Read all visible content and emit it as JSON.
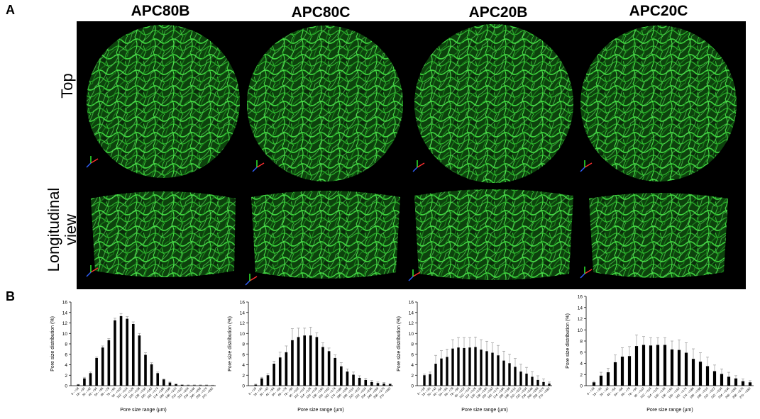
{
  "figure": {
    "panel_a": "A",
    "panel_b": "B",
    "columns": [
      "APC80B",
      "APC80C",
      "APC20B",
      "APC20C"
    ],
    "rows": {
      "top": "Top",
      "longitudinal_1": "Longitudinal",
      "longitudinal_2": "view"
    },
    "image_tint": "#2ecc2e",
    "image_background": "#000000"
  },
  "chart_data": [
    {
      "type": "bar",
      "xlabel": "Pore size range (µm)",
      "ylabel": "Pore size distribution (%)",
      "ylim": [
        0,
        16
      ],
      "yticks": [
        0,
        2,
        4,
        6,
        8,
        10,
        12,
        14,
        16
      ],
      "categories": [
        "6 - <18",
        "18 - <30",
        "30 - <42",
        "42 - <54",
        "54 - <66",
        "66 - <78",
        "78 - <90",
        "90 - <102",
        "102 - <114",
        "114 - <126",
        "126 - <138",
        "138 - <150",
        "150 - <162",
        "162 - <174",
        "174 - <186",
        "186 - <198",
        "198 - <210",
        "210 - <222",
        "222 - <234",
        "234 - <246",
        "246 - <258",
        "258 - <270",
        "270 - <282"
      ],
      "values": [
        0.2,
        1.4,
        2.4,
        5.3,
        7.3,
        8.7,
        12.5,
        13.3,
        12.8,
        11.8,
        9.6,
        5.9,
        4.1,
        2.4,
        1.2,
        0.6,
        0.3,
        0.15,
        0.1,
        0.1,
        0.1,
        0.1,
        0.05
      ],
      "errors": [
        0.05,
        0.2,
        0.2,
        0.2,
        0.3,
        0.3,
        0.4,
        0.5,
        0.4,
        0.4,
        0.4,
        0.4,
        0.3,
        0.2,
        0.1,
        0.1,
        0.05,
        0.05,
        0.05,
        0.05,
        0.05,
        0.05,
        0.05
      ]
    },
    {
      "type": "bar",
      "xlabel": "Pore size range (µm)",
      "ylabel": "Pore size distribution (%)",
      "ylim": [
        0,
        16
      ],
      "yticks": [
        0,
        2,
        4,
        6,
        8,
        10,
        12,
        14,
        16
      ],
      "categories": [
        "6 - <18",
        "18 - <30",
        "30 - <42",
        "42 - <54",
        "54 - <66",
        "66 - <78",
        "78 - <90",
        "90 - <102",
        "102 - <114",
        "114 - <126",
        "126 - <138",
        "138 - <150",
        "150 - <162",
        "162 - <174",
        "174 - <186",
        "186 - <198",
        "198 - <210",
        "210 - <222",
        "222 - <234",
        "234 - <246",
        "246 - <258",
        "258 - <270",
        "270 - <282"
      ],
      "values": [
        0.2,
        1.4,
        2.0,
        4.2,
        5.4,
        6.4,
        8.7,
        9.3,
        9.6,
        9.6,
        9.3,
        7.4,
        6.6,
        5.3,
        3.7,
        2.7,
        2.1,
        1.5,
        1.1,
        0.7,
        0.5,
        0.4,
        0.3
      ],
      "errors": [
        0.1,
        0.2,
        0.3,
        0.5,
        1.0,
        1.2,
        2.2,
        1.7,
        1.4,
        1.6,
        0.8,
        0.8,
        0.6,
        0.6,
        0.7,
        0.5,
        0.5,
        0.4,
        0.3,
        0.3,
        0.2,
        0.2,
        0.1
      ]
    },
    {
      "type": "bar",
      "xlabel": "Pore size range (µm)",
      "ylabel": "Pore size distribution (%)",
      "ylim": [
        0,
        16
      ],
      "yticks": [
        0,
        2,
        4,
        6,
        8,
        10,
        12,
        14,
        16
      ],
      "categories": [
        "6 - <18",
        "18 - <30",
        "30 - <42",
        "42 - <54",
        "54 - <66",
        "66 - <78",
        "78 - <90",
        "90 - <102",
        "102 - <114",
        "114 - <126",
        "126 - <138",
        "138 - <150",
        "150 - <162",
        "162 - <174",
        "174 - <186",
        "186 - <198",
        "198 - <210",
        "210 - <222",
        "222 - <234",
        "234 - <246",
        "246 - <258",
        "258 - <270",
        "270 - <282"
      ],
      "values": [
        2.0,
        2.2,
        4.2,
        5.2,
        5.5,
        7.1,
        7.3,
        7.2,
        7.3,
        7.4,
        6.9,
        6.6,
        6.3,
        5.8,
        4.8,
        4.3,
        3.6,
        2.7,
        2.3,
        1.7,
        1.1,
        0.7,
        0.4
      ],
      "errors": [
        0.2,
        0.4,
        1.6,
        1.5,
        1.5,
        1.7,
        1.9,
        2.0,
        1.9,
        1.9,
        1.9,
        1.9,
        1.9,
        1.9,
        1.8,
        1.7,
        1.6,
        1.4,
        1.2,
        1.0,
        0.8,
        0.6,
        0.3
      ]
    },
    {
      "type": "bar",
      "xlabel": "Pore size range (µm)",
      "ylabel": "Pore size distribution (%)",
      "ylim": [
        0,
        16
      ],
      "yticks": [
        0,
        2,
        4,
        6,
        8,
        10,
        12,
        14,
        16
      ],
      "categories": [
        "6 - <18",
        "18 - <30",
        "30 - <42",
        "42 - <54",
        "54 - <66",
        "66 - <78",
        "78 - <90",
        "90 - <102",
        "102 - <114",
        "114 - <126",
        "126 - <138",
        "138 - <150",
        "150 - <162",
        "162 - <174",
        "174 - <186",
        "186 - <198",
        "198 - <210",
        "210 - <222",
        "222 - <234",
        "234 - <246",
        "246 - <258",
        "258 - <270",
        "270 - <282"
      ],
      "values": [
        0.6,
        1.8,
        2.4,
        4.2,
        5.2,
        5.3,
        7.1,
        7.3,
        7.2,
        7.3,
        7.3,
        6.5,
        6.4,
        5.9,
        4.8,
        4.3,
        3.5,
        2.6,
        2.1,
        1.6,
        1.3,
        0.8,
        0.6
      ],
      "errors": [
        0.2,
        0.6,
        0.7,
        1.3,
        1.6,
        1.7,
        2.0,
        1.5,
        1.4,
        1.3,
        1.3,
        1.5,
        1.8,
        1.8,
        1.8,
        1.6,
        1.6,
        1.1,
        0.9,
        0.8,
        0.5,
        0.4,
        0.3
      ]
    }
  ]
}
